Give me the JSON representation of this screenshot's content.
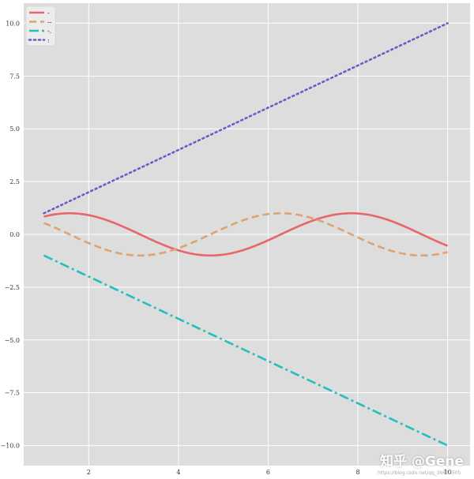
{
  "chart_data": {
    "type": "line",
    "title": "",
    "xlabel": "",
    "ylabel": "",
    "xlim": [
      0.55,
      10.5
    ],
    "ylim": [
      -10.95,
      10.95
    ],
    "grid": true,
    "legend_placement": "top-left",
    "x_ticks": [
      2,
      4,
      6,
      8,
      10
    ],
    "y_ticks": [
      -10.0,
      -7.5,
      -5.0,
      -2.5,
      0.0,
      2.5,
      5.0,
      7.5,
      10.0
    ],
    "x_tick_labels": [
      "2",
      "4",
      "6",
      "8",
      "10"
    ],
    "y_tick_labels": [
      "−10.0",
      "−7.5",
      "−5.0",
      "−2.5",
      "0.0",
      "2.5",
      "5.0",
      "7.5",
      "10.0"
    ],
    "series": [
      {
        "name": "-",
        "function": "sin(x)",
        "style": "solid",
        "color": "#e8666a",
        "x": [
          1,
          1.5,
          2,
          2.5,
          3,
          3.5,
          4,
          4.5,
          5,
          5.5,
          6,
          6.5,
          7,
          7.5,
          8,
          8.5,
          9,
          9.5,
          10
        ],
        "y": [
          0.84,
          1.0,
          0.91,
          0.6,
          0.14,
          -0.35,
          -0.76,
          -0.98,
          -0.96,
          -0.71,
          -0.28,
          0.22,
          0.66,
          0.94,
          0.99,
          0.8,
          0.41,
          -0.08,
          -0.54
        ]
      },
      {
        "name": "--",
        "function": "cos(x)",
        "style": "dashed",
        "color": "#dba471",
        "x": [
          1,
          1.5,
          2,
          2.5,
          3,
          3.5,
          4,
          4.5,
          5,
          5.5,
          6,
          6.5,
          7,
          7.5,
          8,
          8.5,
          9,
          9.5,
          10
        ],
        "y": [
          0.54,
          0.07,
          -0.42,
          -0.8,
          -0.99,
          -0.94,
          -0.65,
          -0.21,
          0.28,
          0.71,
          0.96,
          0.98,
          0.75,
          0.35,
          -0.15,
          -0.6,
          -0.91,
          -1.0,
          -0.84
        ]
      },
      {
        "name": "-.",
        "function": "-x",
        "style": "dashdot",
        "color": "#22bfbd",
        "x": [
          1,
          10
        ],
        "y": [
          -1,
          -10
        ]
      },
      {
        "name": ":",
        "function": "x",
        "style": "dotted",
        "color": "#6a5cc9",
        "x": [
          1,
          10
        ],
        "y": [
          1,
          10
        ]
      }
    ]
  },
  "watermark": {
    "text": "知乎 @Gene",
    "url_text": "https://blog.csdn.net/qq_36653505"
  }
}
